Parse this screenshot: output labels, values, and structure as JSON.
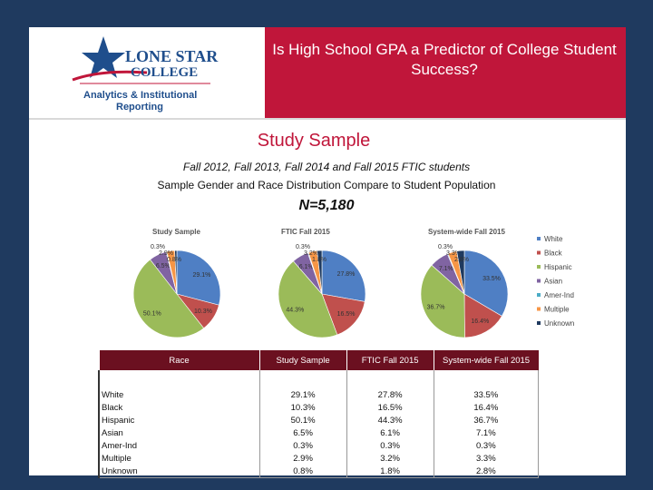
{
  "header": {
    "title": "Is High School GPA a Predictor of College Student Success?",
    "logo_line1": "LONE STAR",
    "logo_line2": "COLLEGE",
    "logo_line3": "Analytics & Institutional",
    "logo_line4": "Reporting"
  },
  "section_title": "Study Sample",
  "subtitle_line1": "Fall 2012, Fall 2013, Fall 2014 and Fall 2015 FTIC students",
  "subtitle_line2": "Sample Gender and Race Distribution Compare to Student Population",
  "n_label": "N=5,180",
  "colors": {
    "band": "#c0163a",
    "white": "#4f7fc4",
    "black": "#c0504d",
    "hispanic": "#9bbb59",
    "asian": "#8064a2",
    "amerind": "#4bacc6",
    "multiple": "#f79646",
    "unknown": "#1f3a5f"
  },
  "chart_data": [
    {
      "type": "pie",
      "title": "Study Sample",
      "categories": [
        "White",
        "Black",
        "Hispanic",
        "Asian",
        "Amer-Ind",
        "Multiple",
        "Unknown"
      ],
      "values": [
        29.1,
        10.3,
        50.1,
        6.5,
        0.3,
        2.9,
        0.8
      ],
      "labels": [
        "29.1%",
        "10.3%",
        "50.1%",
        "6.5%",
        "0.3%",
        "2.9%",
        "0.8%"
      ]
    },
    {
      "type": "pie",
      "title": "FTIC Fall 2015",
      "categories": [
        "White",
        "Black",
        "Hispanic",
        "Asian",
        "Amer-Ind",
        "Multiple",
        "Unknown"
      ],
      "values": [
        27.8,
        16.5,
        44.3,
        6.1,
        0.3,
        3.2,
        1.8
      ],
      "labels": [
        "27.8%",
        "16.5%",
        "44.3%",
        "6.1%",
        "0.3%",
        "3.2%",
        "1.8%"
      ]
    },
    {
      "type": "pie",
      "title": "System-wide Fall 2015",
      "categories": [
        "White",
        "Black",
        "Hispanic",
        "Asian",
        "Amer-Ind",
        "Multiple",
        "Unknown"
      ],
      "values": [
        33.5,
        16.4,
        36.7,
        7.1,
        0.3,
        3.3,
        2.8
      ],
      "labels": [
        "33.5%",
        "16.4%",
        "36.7%",
        "7.1%",
        "0.3%",
        "3.3%",
        "2.8%"
      ],
      "legend": [
        "White",
        "Black",
        "Hispanic",
        "Asian",
        "Amer-Ind",
        "Multiple",
        "Unknown"
      ],
      "legend_position": "right"
    }
  ],
  "table": {
    "headers": [
      "Race",
      "Study Sample",
      "FTIC Fall 2015",
      "System-wide Fall 2015"
    ],
    "rows": [
      [
        "White",
        "29.1%",
        "27.8%",
        "33.5%"
      ],
      [
        "Black",
        "10.3%",
        "16.5%",
        "16.4%"
      ],
      [
        "Hispanic",
        "50.1%",
        "44.3%",
        "36.7%"
      ],
      [
        "Asian",
        "6.5%",
        "6.1%",
        "7.1%"
      ],
      [
        "Amer-Ind",
        "0.3%",
        "0.3%",
        "0.3%"
      ],
      [
        "Multiple",
        "2.9%",
        "3.2%",
        "3.3%"
      ],
      [
        "Unknown",
        "0.8%",
        "1.8%",
        "2.8%"
      ]
    ]
  }
}
